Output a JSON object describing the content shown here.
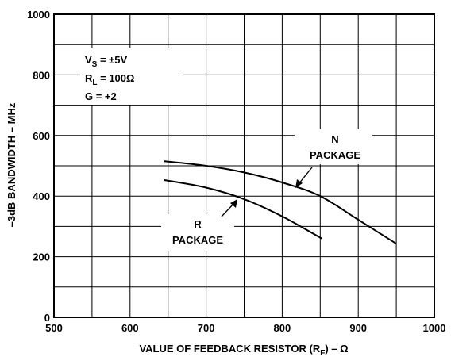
{
  "chart_data": {
    "type": "line",
    "title": "",
    "xlabel": "VALUE OF FEEDBACK RESISTOR (R",
    "xlabel_sub": "F",
    "xlabel_tail": ") – Ω",
    "ylabel": "–3dB BANDWIDTH – MHz",
    "xlim": [
      500,
      1000
    ],
    "ylim": [
      0,
      1000
    ],
    "x_ticks": [
      500,
      600,
      700,
      800,
      900,
      1000
    ],
    "y_ticks": [
      0,
      200,
      400,
      600,
      800,
      1000
    ],
    "grid": true,
    "conditions": {
      "vs": "V",
      "vs_sub": "S",
      "vs_val": " = ±5V",
      "rl": "R",
      "rl_sub": "L",
      "rl_val": " = 100Ω",
      "gain": "G = +2"
    },
    "series": [
      {
        "name": "N PACKAGE",
        "x": [
          645,
          700,
          750,
          800,
          850,
          900,
          950
        ],
        "y": [
          515,
          500,
          478,
          445,
          400,
          322,
          243
        ]
      },
      {
        "name": "R PACKAGE",
        "x": [
          645,
          700,
          750,
          800,
          852
        ],
        "y": [
          453,
          428,
          390,
          333,
          260
        ]
      }
    ],
    "annotations": [
      {
        "lines": [
          "N",
          "PACKAGE"
        ],
        "series": "N PACKAGE"
      },
      {
        "lines": [
          "R",
          "PACKAGE"
        ],
        "series": "R PACKAGE"
      }
    ]
  }
}
